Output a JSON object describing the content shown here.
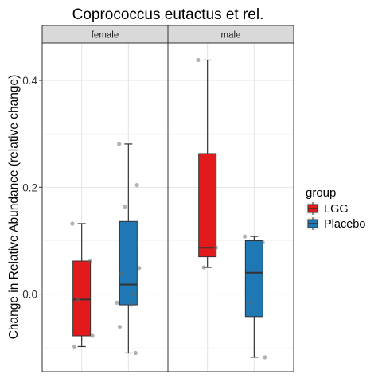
{
  "chart_data": {
    "type": "boxplot",
    "title": "Coprococcus eutactus et rel.",
    "ylabel": "Change in Relative Abundance (relative change)",
    "xlabel": "",
    "ylim": [
      -0.145,
      0.47
    ],
    "yticks": [
      0.0,
      0.2,
      0.4
    ],
    "ytick_labels": [
      "0.0",
      "0.2",
      "0.4"
    ],
    "grid": true,
    "legend": {
      "title": "group",
      "placement": "right",
      "entries": [
        {
          "label": "LGG",
          "color": "#e31a1c"
        },
        {
          "label": "Placebo",
          "color": "#1f78b4"
        }
      ]
    },
    "facets": [
      {
        "label": "female",
        "boxes": [
          {
            "group": "LGG",
            "min": -0.098,
            "q1": -0.078,
            "median": -0.01,
            "q3": 0.062,
            "max": 0.132,
            "points": [
              0.132,
              0.062,
              -0.01,
              -0.078,
              -0.098
            ]
          },
          {
            "group": "Placebo",
            "min": -0.11,
            "q1": -0.02,
            "median": 0.018,
            "q3": 0.136,
            "max": 0.281,
            "points": [
              0.281,
              0.204,
              0.164,
              0.049,
              0.038,
              0.0,
              -0.016,
              -0.02,
              -0.061,
              -0.11
            ]
          }
        ]
      },
      {
        "label": "male",
        "boxes": [
          {
            "group": "LGG",
            "min": 0.05,
            "q1": 0.07,
            "median": 0.087,
            "q3": 0.263,
            "max": 0.438,
            "points": [
              0.438,
              0.087,
              0.05
            ]
          },
          {
            "group": "Placebo",
            "min": -0.118,
            "q1": -0.042,
            "median": 0.04,
            "q3": 0.1,
            "max": 0.108,
            "points": [
              0.108,
              0.097,
              -0.016,
              -0.118
            ]
          }
        ]
      }
    ]
  }
}
